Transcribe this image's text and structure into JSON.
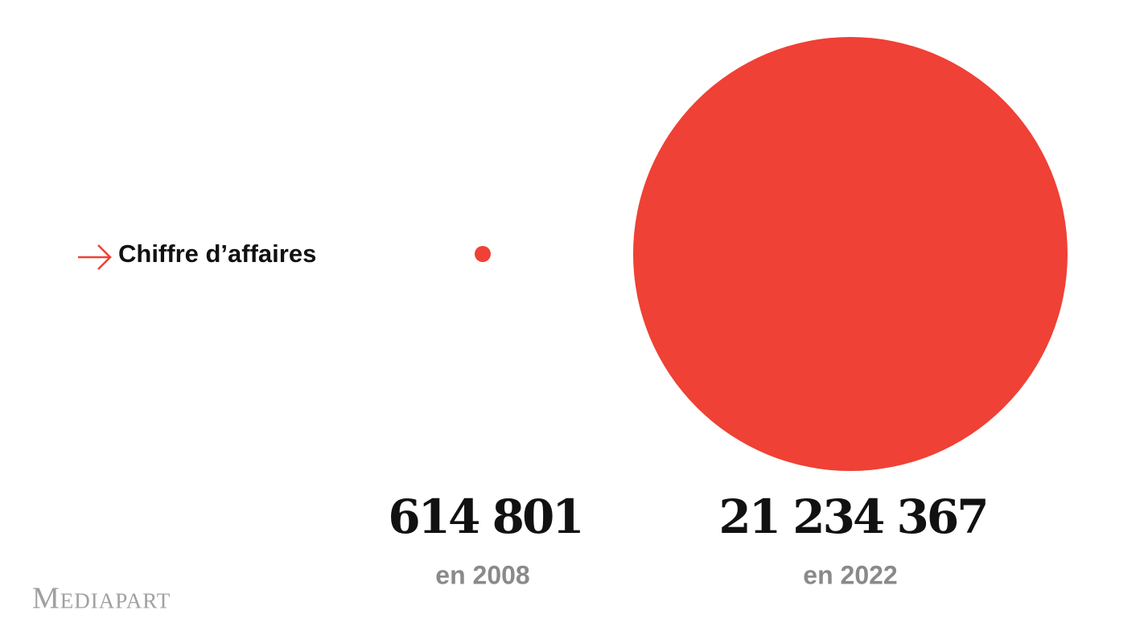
{
  "chart_data": {
    "type": "bubble",
    "title": "Chiffre d’affaires",
    "categories": [
      "en 2008",
      "en 2022"
    ],
    "values": [
      614801,
      21234367
    ],
    "value_labels": [
      "614 801",
      "21 234 367"
    ],
    "color": "#ef4135",
    "brand": "Mediapart"
  }
}
